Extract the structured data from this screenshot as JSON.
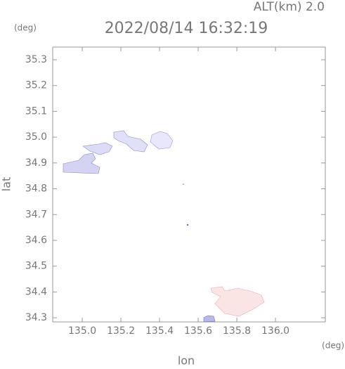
{
  "chart_data": {
    "type": "map",
    "title": "2022/08/14 16:32:19",
    "subtitle": "ALT(km)  2.0",
    "y_unit": "(deg)",
    "x_unit": "(deg)",
    "x_label": "lon",
    "y_label": "lat",
    "xlim": [
      134.847,
      136.258
    ],
    "ylim": [
      34.284,
      35.349
    ],
    "xticks": [
      {
        "value": 135,
        "label": "135.0"
      },
      135.2,
      135.4,
      135.6,
      135.8,
      {
        "value": 136,
        "label": "136.0"
      }
    ],
    "yticks": [
      34.3,
      34.4,
      34.5,
      34.6,
      34.7,
      34.8,
      34.9,
      {
        "value": 35,
        "label": "35.0"
      },
      35.1,
      35.2,
      35.3
    ]
  }
}
